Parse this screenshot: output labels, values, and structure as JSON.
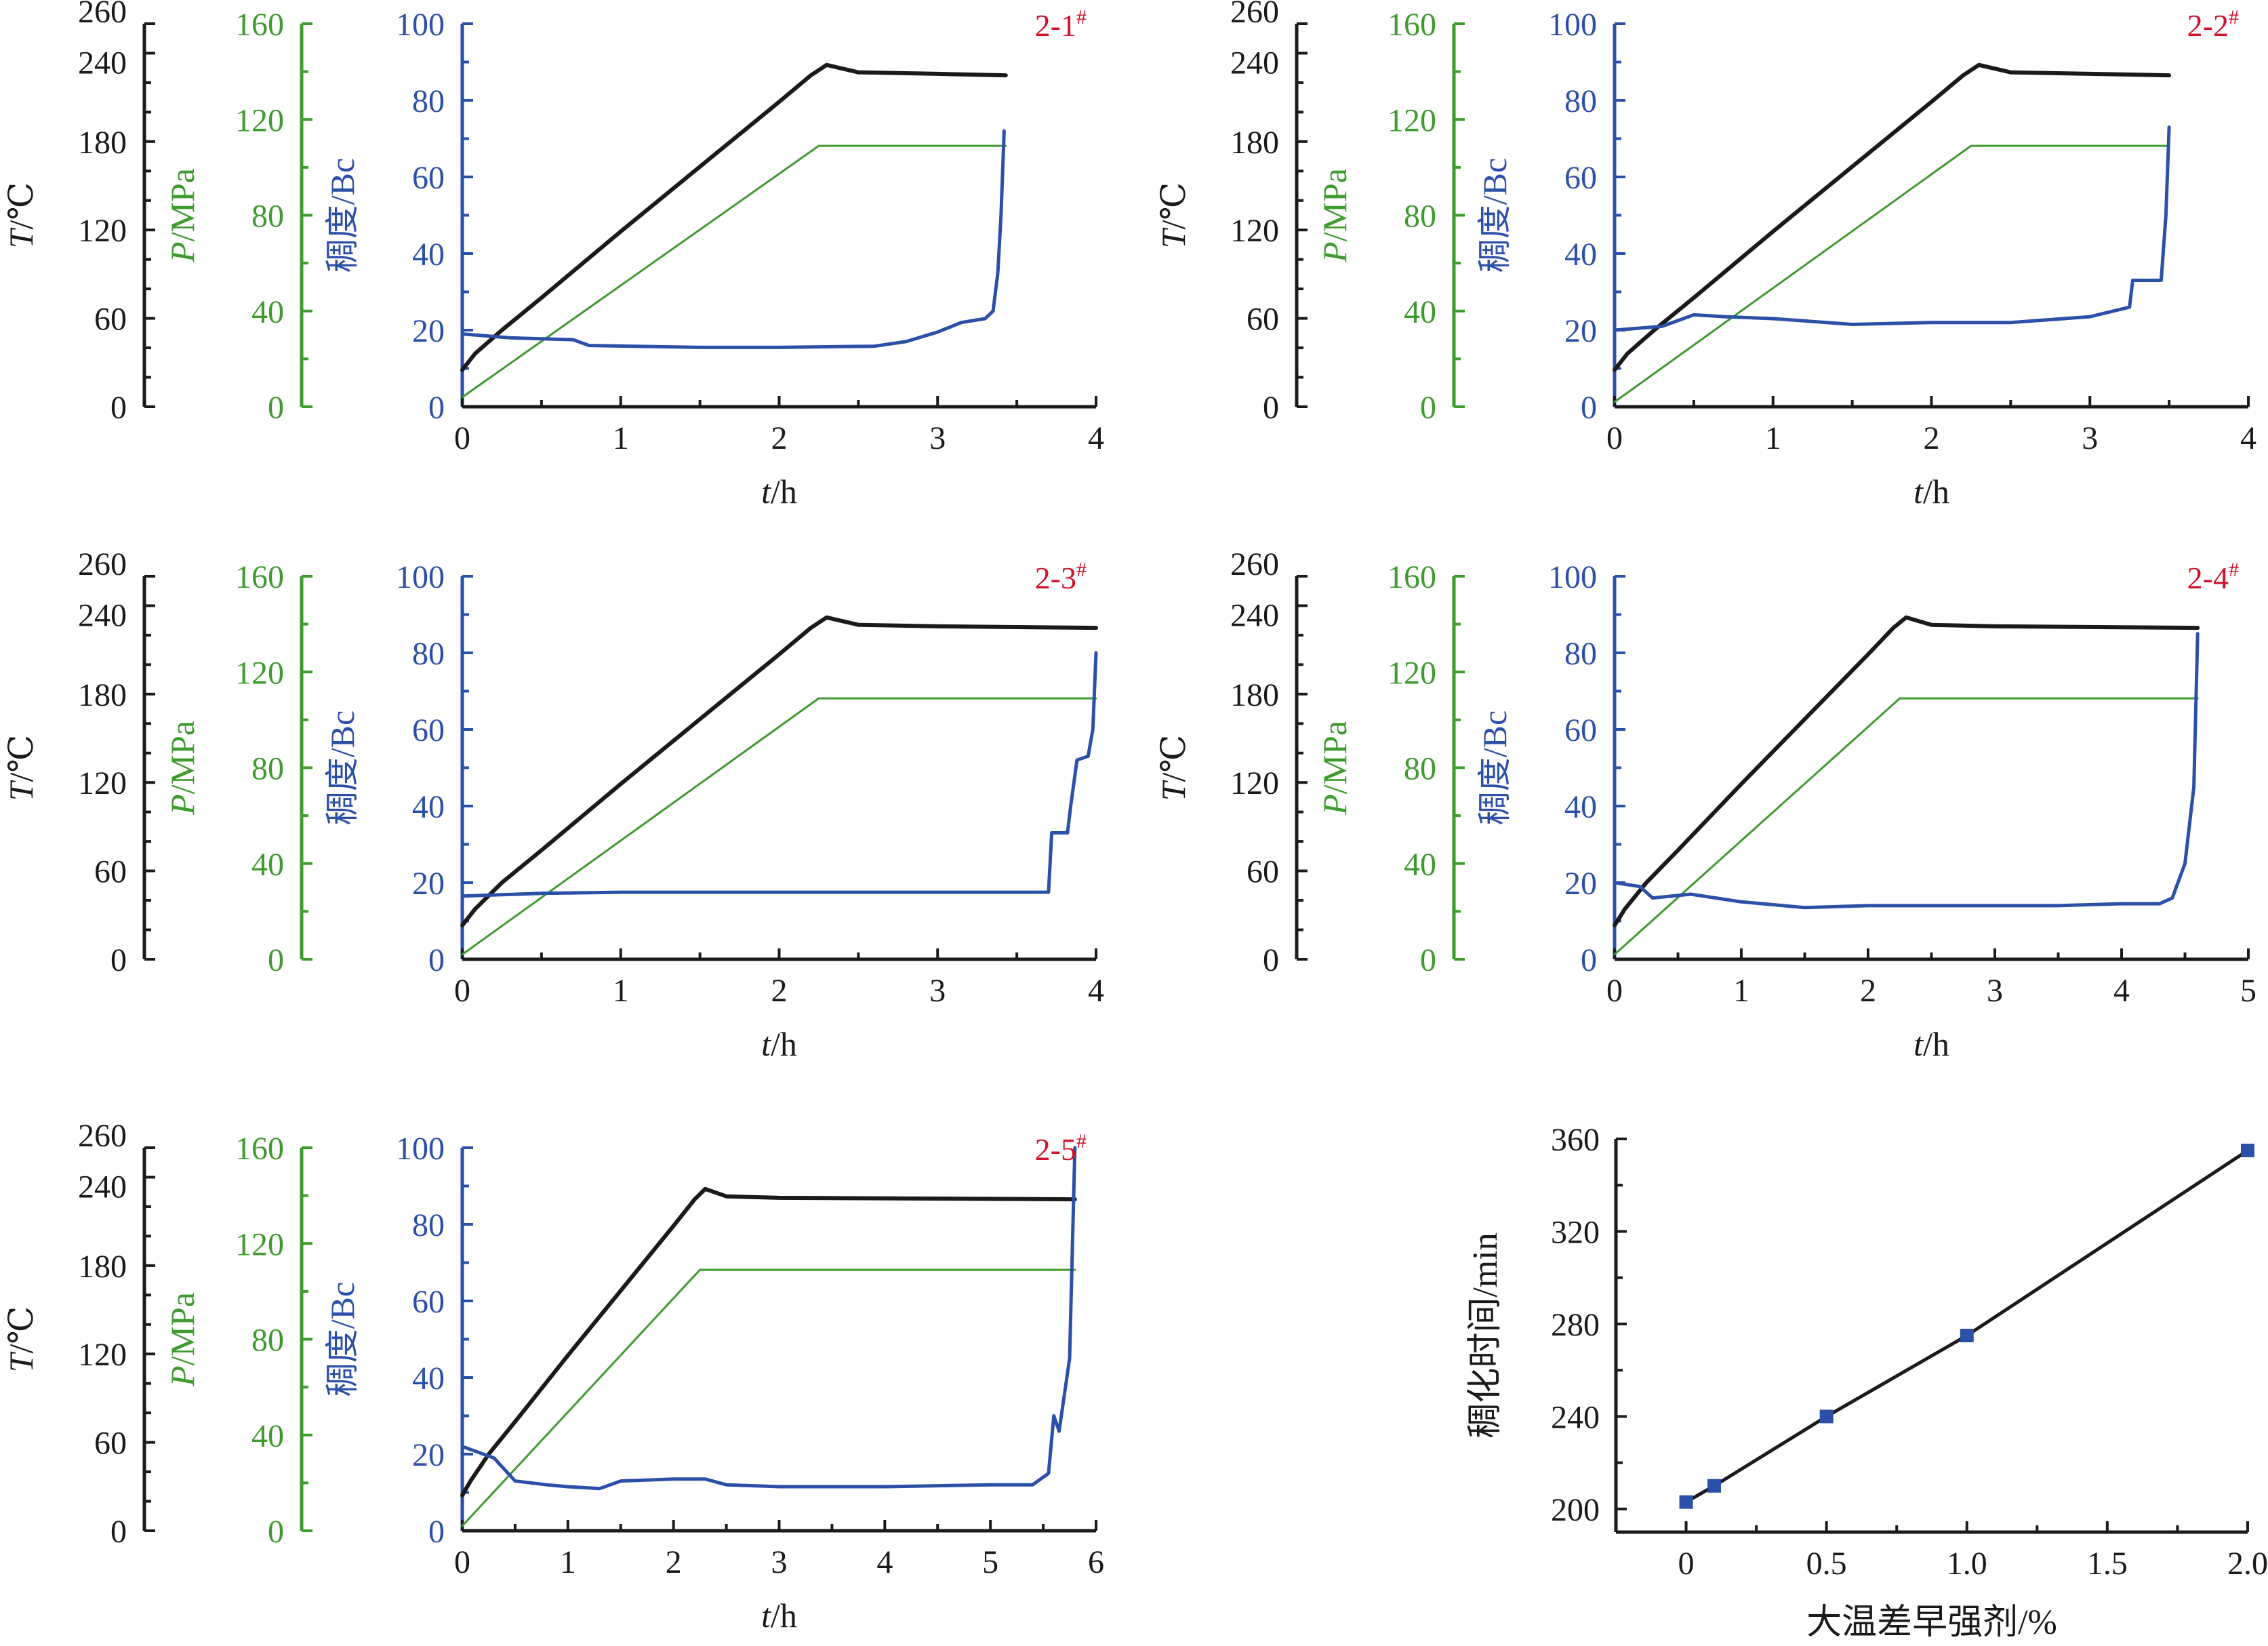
{
  "colors": {
    "temperature": "#1a1a1a",
    "pressure": "#3f9a2f",
    "consistency": "#2c4fa8",
    "panel_label": "#d0122a",
    "line_axis": "#1a1a1a",
    "line_marker": "#2c4fa8"
  },
  "labels": {
    "t_axis": "T/℃",
    "p_axis": "P/MPa",
    "bc_axis": "稠度/Bc",
    "x_axis": "t/h"
  },
  "chart_data": [
    {
      "type": "line",
      "label": "2-1#",
      "xlabel": "t/h",
      "xlim": [
        0,
        4
      ],
      "xticks": [
        "0",
        "1",
        "2",
        "3",
        "4"
      ],
      "y_axes": [
        {
          "label": "T/℃",
          "lim": [
            0,
            260
          ],
          "ticks": [
            "0",
            "60",
            "120",
            "180",
            "240",
            "260"
          ]
        },
        {
          "label": "P/MPa",
          "lim": [
            0,
            160
          ],
          "ticks": [
            "0",
            "40",
            "80",
            "120",
            "160"
          ]
        },
        {
          "label": "稠度/Bc",
          "lim": [
            0,
            100
          ],
          "ticks": [
            "0",
            "20",
            "40",
            "60",
            "80",
            "100"
          ]
        }
      ],
      "series": [
        {
          "axis": "T",
          "points": [
            [
              0,
              25
            ],
            [
              0.08,
              36
            ],
            [
              0.25,
              52
            ],
            [
              0.5,
              74
            ],
            [
              1.0,
              119
            ],
            [
              1.5,
              163
            ],
            [
              2.0,
              207
            ],
            [
              2.2,
              225
            ],
            [
              2.3,
              232
            ],
            [
              2.5,
              227
            ],
            [
              3.0,
              226
            ],
            [
              3.43,
              225
            ]
          ]
        },
        {
          "axis": "P",
          "points": [
            [
              0,
              4
            ],
            [
              2.25,
              109
            ],
            [
              3.43,
              109
            ]
          ]
        },
        {
          "axis": "Bc",
          "points": [
            [
              0,
              19
            ],
            [
              0.3,
              18
            ],
            [
              0.7,
              17.5
            ],
            [
              0.8,
              16
            ],
            [
              1.5,
              15.5
            ],
            [
              2.0,
              15.5
            ],
            [
              2.6,
              15.8
            ],
            [
              2.8,
              17
            ],
            [
              3.0,
              19.5
            ],
            [
              3.15,
              22
            ],
            [
              3.3,
              23
            ],
            [
              3.35,
              25
            ],
            [
              3.38,
              35
            ],
            [
              3.4,
              50
            ],
            [
              3.42,
              72
            ]
          ]
        }
      ]
    },
    {
      "type": "line",
      "label": "2-2#",
      "xlabel": "t/h",
      "xlim": [
        0,
        4
      ],
      "xticks": [
        "0",
        "1",
        "2",
        "3",
        "4"
      ],
      "y_axes": [
        {
          "label": "T/℃",
          "lim": [
            0,
            260
          ],
          "ticks": [
            "0",
            "60",
            "120",
            "180",
            "240",
            "260"
          ]
        },
        {
          "label": "P/MPa",
          "lim": [
            0,
            160
          ],
          "ticks": [
            "0",
            "40",
            "80",
            "120",
            "160"
          ]
        },
        {
          "label": "稠度/Bc",
          "lim": [
            0,
            100
          ],
          "ticks": [
            "0",
            "20",
            "40",
            "60",
            "80",
            "100"
          ]
        }
      ],
      "series": [
        {
          "axis": "T",
          "points": [
            [
              0,
              25
            ],
            [
              0.08,
              36
            ],
            [
              0.25,
              52
            ],
            [
              0.5,
              74
            ],
            [
              1.0,
              119
            ],
            [
              1.5,
              163
            ],
            [
              2.0,
              207
            ],
            [
              2.2,
              225
            ],
            [
              2.3,
              232
            ],
            [
              2.5,
              227
            ],
            [
              3.0,
              226
            ],
            [
              3.5,
              225
            ]
          ]
        },
        {
          "axis": "P",
          "points": [
            [
              0,
              2
            ],
            [
              2.25,
              109
            ],
            [
              3.5,
              109
            ]
          ]
        },
        {
          "axis": "Bc",
          "points": [
            [
              0,
              20
            ],
            [
              0.3,
              21
            ],
            [
              0.5,
              24
            ],
            [
              0.7,
              23.5
            ],
            [
              1.0,
              23
            ],
            [
              1.5,
              21.5
            ],
            [
              2.0,
              22
            ],
            [
              2.5,
              22
            ],
            [
              3.0,
              23.5
            ],
            [
              3.25,
              26
            ],
            [
              3.27,
              33
            ],
            [
              3.45,
              33
            ],
            [
              3.48,
              50
            ],
            [
              3.5,
              73
            ]
          ]
        }
      ]
    },
    {
      "type": "line",
      "label": "2-3#",
      "xlabel": "t/h",
      "xlim": [
        0,
        4
      ],
      "xticks": [
        "0",
        "1",
        "2",
        "3",
        "4"
      ],
      "y_axes": [
        {
          "label": "T/℃",
          "lim": [
            0,
            260
          ],
          "ticks": [
            "0",
            "60",
            "120",
            "180",
            "240",
            "260"
          ]
        },
        {
          "label": "P/MPa",
          "lim": [
            0,
            160
          ],
          "ticks": [
            "0",
            "40",
            "80",
            "120",
            "160"
          ]
        },
        {
          "label": "稠度/Bc",
          "lim": [
            0,
            100
          ],
          "ticks": [
            "0",
            "20",
            "40",
            "60",
            "80",
            "100"
          ]
        }
      ],
      "series": [
        {
          "axis": "T",
          "points": [
            [
              0,
              23
            ],
            [
              0.08,
              34
            ],
            [
              0.25,
              52
            ],
            [
              0.5,
              74
            ],
            [
              1.0,
              119
            ],
            [
              1.5,
              163
            ],
            [
              2.0,
              207
            ],
            [
              2.2,
              225
            ],
            [
              2.3,
              232
            ],
            [
              2.5,
              227
            ],
            [
              3.0,
              226
            ],
            [
              4.0,
              225
            ]
          ]
        },
        {
          "axis": "P",
          "points": [
            [
              0,
              2
            ],
            [
              2.25,
              109
            ],
            [
              4.0,
              109
            ]
          ]
        },
        {
          "axis": "Bc",
          "points": [
            [
              0,
              16.5
            ],
            [
              0.5,
              17.2
            ],
            [
              1.0,
              17.5
            ],
            [
              2.0,
              17.5
            ],
            [
              3.0,
              17.5
            ],
            [
              3.7,
              17.5
            ],
            [
              3.72,
              33
            ],
            [
              3.82,
              33
            ],
            [
              3.84,
              40
            ],
            [
              3.88,
              52
            ],
            [
              3.95,
              53
            ],
            [
              3.98,
              60
            ],
            [
              4.0,
              80
            ]
          ]
        }
      ]
    },
    {
      "type": "line",
      "label": "2-4#",
      "xlabel": "t/h",
      "xlim": [
        0,
        5
      ],
      "xticks": [
        "0",
        "1",
        "2",
        "3",
        "4",
        "5"
      ],
      "y_axes": [
        {
          "label": "T/℃",
          "lim": [
            0,
            260
          ],
          "ticks": [
            "0",
            "60",
            "120",
            "180",
            "240",
            "260"
          ]
        },
        {
          "label": "P/MPa",
          "lim": [
            0,
            160
          ],
          "ticks": [
            "0",
            "40",
            "80",
            "120",
            "160"
          ]
        },
        {
          "label": "稠度/Bc",
          "lim": [
            0,
            100
          ],
          "ticks": [
            "0",
            "20",
            "40",
            "60",
            "80",
            "100"
          ]
        }
      ],
      "series": [
        {
          "axis": "T",
          "points": [
            [
              0,
              23
            ],
            [
              0.08,
              34
            ],
            [
              0.25,
              52
            ],
            [
              0.5,
              74
            ],
            [
              1.0,
              119
            ],
            [
              1.5,
              163
            ],
            [
              2.0,
              207
            ],
            [
              2.2,
              225
            ],
            [
              2.3,
              232
            ],
            [
              2.5,
              227
            ],
            [
              3.0,
              226
            ],
            [
              4.6,
              225
            ]
          ]
        },
        {
          "axis": "P",
          "points": [
            [
              0,
              2
            ],
            [
              2.25,
              109
            ],
            [
              4.6,
              109
            ]
          ]
        },
        {
          "axis": "Bc",
          "points": [
            [
              0,
              20
            ],
            [
              0.2,
              19
            ],
            [
              0.3,
              16
            ],
            [
              0.6,
              17
            ],
            [
              1.0,
              15
            ],
            [
              1.5,
              13.5
            ],
            [
              2.0,
              14
            ],
            [
              2.5,
              14
            ],
            [
              3.0,
              14
            ],
            [
              3.5,
              14
            ],
            [
              4.0,
              14.5
            ],
            [
              4.3,
              14.5
            ],
            [
              4.4,
              16
            ],
            [
              4.5,
              25
            ],
            [
              4.57,
              45
            ],
            [
              4.6,
              85
            ]
          ]
        }
      ]
    },
    {
      "type": "line",
      "label": "2-5#",
      "xlabel": "t/h",
      "xlim": [
        0,
        6
      ],
      "xticks": [
        "0",
        "1",
        "2",
        "3",
        "4",
        "5",
        "6"
      ],
      "y_axes": [
        {
          "label": "T/℃",
          "lim": [
            0,
            260
          ],
          "ticks": [
            "0",
            "60",
            "120",
            "180",
            "240",
            "260"
          ]
        },
        {
          "label": "P/MPa",
          "lim": [
            0,
            160
          ],
          "ticks": [
            "0",
            "40",
            "80",
            "120",
            "160"
          ]
        },
        {
          "label": "稠度/Bc",
          "lim": [
            0,
            100
          ],
          "ticks": [
            "0",
            "20",
            "40",
            "60",
            "80",
            "100"
          ]
        }
      ],
      "series": [
        {
          "axis": "T",
          "points": [
            [
              0,
              24
            ],
            [
              0.08,
              34
            ],
            [
              0.25,
              52
            ],
            [
              0.5,
              74
            ],
            [
              1.0,
              119
            ],
            [
              1.5,
              163
            ],
            [
              2.0,
              207
            ],
            [
              2.2,
              225
            ],
            [
              2.3,
              232
            ],
            [
              2.5,
              227
            ],
            [
              3.0,
              226
            ],
            [
              5.8,
              225
            ]
          ]
        },
        {
          "axis": "P",
          "points": [
            [
              0,
              2
            ],
            [
              2.25,
              109
            ],
            [
              5.8,
              109
            ]
          ]
        },
        {
          "axis": "Bc",
          "points": [
            [
              0,
              22
            ],
            [
              0.3,
              19
            ],
            [
              0.5,
              13
            ],
            [
              0.8,
              12
            ],
            [
              1.0,
              11.5
            ],
            [
              1.3,
              11
            ],
            [
              1.5,
              13
            ],
            [
              2.0,
              13.5
            ],
            [
              2.3,
              13.5
            ],
            [
              2.5,
              12
            ],
            [
              3.0,
              11.5
            ],
            [
              4.0,
              11.5
            ],
            [
              5.0,
              12
            ],
            [
              5.4,
              12
            ],
            [
              5.55,
              15
            ],
            [
              5.6,
              30
            ],
            [
              5.65,
              26
            ],
            [
              5.75,
              45
            ],
            [
              5.8,
              100
            ]
          ]
        }
      ]
    },
    {
      "type": "line",
      "xlabel": "大温差早强剂/%",
      "ylabel": "稠化时间/min",
      "xlim": [
        -0.25,
        2.0
      ],
      "ylim": [
        190,
        360
      ],
      "xticks": [
        "0",
        "0.5",
        "1.0",
        "1.5",
        "2.0"
      ],
      "yticks": [
        "200",
        "240",
        "280",
        "320",
        "360"
      ],
      "x": [
        0,
        0.1,
        0.5,
        1.0,
        2.0
      ],
      "values": [
        203,
        210,
        240,
        275,
        355
      ]
    }
  ]
}
